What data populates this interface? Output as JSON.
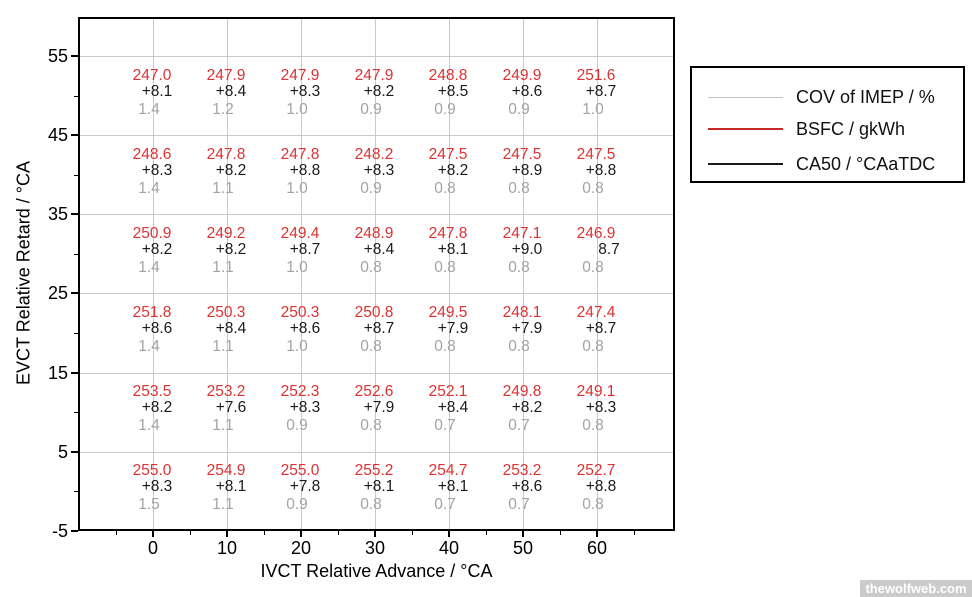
{
  "watermark": {
    "text": "thewolfweb.com"
  },
  "chart_data": {
    "type": "scatter",
    "title": "",
    "xlabel": "IVCT Relative Advance / °CA",
    "ylabel": "EVCT Relative Retard / °CA",
    "xlim": [
      -10.1,
      70.5
    ],
    "ylim": [
      -5,
      59.9
    ],
    "grid_on": true,
    "x_major_ticks": [
      0,
      10,
      20,
      30,
      40,
      50,
      60
    ],
    "x_minor_ticks": [
      -5,
      5,
      15,
      25,
      35,
      45,
      55,
      65
    ],
    "y_major_ticks": [
      55,
      45,
      35,
      25,
      15,
      5,
      -5
    ],
    "y_minor_ticks": [
      50,
      40,
      30,
      20,
      10,
      0
    ],
    "gridlines": {
      "vertical_at": [
        0,
        10,
        20,
        30,
        40,
        50,
        60
      ],
      "horizontal_at": [
        55,
        45,
        35,
        25,
        15,
        5
      ]
    },
    "colors": {
      "bsfc_text": "#dc3232",
      "ca50_text": "#1a1a1a",
      "cov_text": "#a3a3a3",
      "grid": "#c9c9c9",
      "axis": "#000000"
    },
    "legend": {
      "position": "outside-right",
      "entries": [
        {
          "label": "COV of IMEP / %",
          "color": "#c2c2c2",
          "series_key": "cov"
        },
        {
          "label": "BSFC / gkWh",
          "color": "#c62828",
          "series_key": "bsfc"
        },
        {
          "label": "CA50 / °CAaTDC",
          "color": "#1a1a1a",
          "series_key": "ca50"
        }
      ]
    },
    "ivct_values": [
      0,
      10,
      20,
      30,
      40,
      50,
      60
    ],
    "evct_values": [
      50,
      40,
      30,
      20,
      10,
      0
    ],
    "points": [
      {
        "ivct": 0,
        "evct": 50,
        "bsfc": "247.0",
        "ca50": "8.1",
        "ca50_marker": true,
        "cov": "1.4"
      },
      {
        "ivct": 10,
        "evct": 50,
        "bsfc": "247.9",
        "ca50": "8.4",
        "ca50_marker": true,
        "cov": "1.2"
      },
      {
        "ivct": 20,
        "evct": 50,
        "bsfc": "247.9",
        "ca50": "8.3",
        "ca50_marker": true,
        "cov": "1.0"
      },
      {
        "ivct": 30,
        "evct": 50,
        "bsfc": "247.9",
        "ca50": "8.2",
        "ca50_marker": true,
        "cov": "0.9"
      },
      {
        "ivct": 40,
        "evct": 50,
        "bsfc": "248.8",
        "ca50": "8.5",
        "ca50_marker": true,
        "cov": "0.9"
      },
      {
        "ivct": 50,
        "evct": 50,
        "bsfc": "249.9",
        "ca50": "8.6",
        "ca50_marker": true,
        "cov": "0.9"
      },
      {
        "ivct": 60,
        "evct": 50,
        "bsfc": "251.6",
        "ca50": "8.7",
        "ca50_marker": true,
        "cov": "1.0"
      },
      {
        "ivct": 0,
        "evct": 40,
        "bsfc": "248.6",
        "ca50": "8.3",
        "ca50_marker": true,
        "cov": "1.4"
      },
      {
        "ivct": 10,
        "evct": 40,
        "bsfc": "247.8",
        "ca50": "8.2",
        "ca50_marker": true,
        "cov": "1.1"
      },
      {
        "ivct": 20,
        "evct": 40,
        "bsfc": "247.8",
        "ca50": "8.8",
        "ca50_marker": true,
        "cov": "1.0"
      },
      {
        "ivct": 30,
        "evct": 40,
        "bsfc": "248.2",
        "ca50": "8.3",
        "ca50_marker": true,
        "cov": "0.9"
      },
      {
        "ivct": 40,
        "evct": 40,
        "bsfc": "247.5",
        "ca50": "8.2",
        "ca50_marker": true,
        "cov": "0.8"
      },
      {
        "ivct": 50,
        "evct": 40,
        "bsfc": "247.5",
        "ca50": "8.9",
        "ca50_marker": true,
        "cov": "0.8"
      },
      {
        "ivct": 60,
        "evct": 40,
        "bsfc": "247.5",
        "ca50": "8.8",
        "ca50_marker": true,
        "cov": "0.8"
      },
      {
        "ivct": 0,
        "evct": 30,
        "bsfc": "250.9",
        "ca50": "8.2",
        "ca50_marker": true,
        "cov": "1.4"
      },
      {
        "ivct": 10,
        "evct": 30,
        "bsfc": "249.2",
        "ca50": "8.2",
        "ca50_marker": true,
        "cov": "1.1"
      },
      {
        "ivct": 20,
        "evct": 30,
        "bsfc": "249.4",
        "ca50": "8.7",
        "ca50_marker": true,
        "cov": "1.0"
      },
      {
        "ivct": 30,
        "evct": 30,
        "bsfc": "248.9",
        "ca50": "8.4",
        "ca50_marker": true,
        "cov": "0.8"
      },
      {
        "ivct": 40,
        "evct": 30,
        "bsfc": "247.8",
        "ca50": "8.1",
        "ca50_marker": true,
        "cov": "0.8"
      },
      {
        "ivct": 50,
        "evct": 30,
        "bsfc": "247.1",
        "ca50": "9.0",
        "ca50_marker": true,
        "cov": "0.8"
      },
      {
        "ivct": 60,
        "evct": 30,
        "bsfc": "246.9",
        "ca50": "8.7",
        "ca50_marker": false,
        "cov": "0.8"
      },
      {
        "ivct": 0,
        "evct": 20,
        "bsfc": "251.8",
        "ca50": "8.6",
        "ca50_marker": true,
        "cov": "1.4"
      },
      {
        "ivct": 10,
        "evct": 20,
        "bsfc": "250.3",
        "ca50": "8.4",
        "ca50_marker": true,
        "cov": "1.1"
      },
      {
        "ivct": 20,
        "evct": 20,
        "bsfc": "250.3",
        "ca50": "8.6",
        "ca50_marker": true,
        "cov": "1.0"
      },
      {
        "ivct": 30,
        "evct": 20,
        "bsfc": "250.8",
        "ca50": "8.7",
        "ca50_marker": true,
        "cov": "0.8"
      },
      {
        "ivct": 40,
        "evct": 20,
        "bsfc": "249.5",
        "ca50": "7.9",
        "ca50_marker": true,
        "cov": "0.8"
      },
      {
        "ivct": 50,
        "evct": 20,
        "bsfc": "248.1",
        "ca50": "7.9",
        "ca50_marker": true,
        "cov": "0.8"
      },
      {
        "ivct": 60,
        "evct": 20,
        "bsfc": "247.4",
        "ca50": "8.7",
        "ca50_marker": true,
        "cov": "0.8"
      },
      {
        "ivct": 0,
        "evct": 10,
        "bsfc": "253.5",
        "ca50": "8.2",
        "ca50_marker": true,
        "cov": "1.4"
      },
      {
        "ivct": 10,
        "evct": 10,
        "bsfc": "253.2",
        "ca50": "7.6",
        "ca50_marker": true,
        "cov": "1.1"
      },
      {
        "ivct": 20,
        "evct": 10,
        "bsfc": "252.3",
        "ca50": "8.3",
        "ca50_marker": true,
        "cov": "0.9"
      },
      {
        "ivct": 30,
        "evct": 10,
        "bsfc": "252.6",
        "ca50": "7.9",
        "ca50_marker": true,
        "cov": "0.8"
      },
      {
        "ivct": 40,
        "evct": 10,
        "bsfc": "252.1",
        "ca50": "8.4",
        "ca50_marker": true,
        "cov": "0.7"
      },
      {
        "ivct": 50,
        "evct": 10,
        "bsfc": "249.8",
        "ca50": "8.2",
        "ca50_marker": true,
        "cov": "0.7"
      },
      {
        "ivct": 60,
        "evct": 10,
        "bsfc": "249.1",
        "ca50": "8.3",
        "ca50_marker": true,
        "cov": "0.8"
      },
      {
        "ivct": 0,
        "evct": 0,
        "bsfc": "255.0",
        "ca50": "8.3",
        "ca50_marker": true,
        "cov": "1.5"
      },
      {
        "ivct": 10,
        "evct": 0,
        "bsfc": "254.9",
        "ca50": "8.1",
        "ca50_marker": true,
        "cov": "1.1"
      },
      {
        "ivct": 20,
        "evct": 0,
        "bsfc": "255.0",
        "ca50": "7.8",
        "ca50_marker": true,
        "cov": "0.9"
      },
      {
        "ivct": 30,
        "evct": 0,
        "bsfc": "255.2",
        "ca50": "8.1",
        "ca50_marker": true,
        "cov": "0.8"
      },
      {
        "ivct": 40,
        "evct": 0,
        "bsfc": "254.7",
        "ca50": "8.1",
        "ca50_marker": true,
        "cov": "0.7"
      },
      {
        "ivct": 50,
        "evct": 0,
        "bsfc": "253.2",
        "ca50": "8.6",
        "ca50_marker": true,
        "cov": "0.7"
      },
      {
        "ivct": 60,
        "evct": 0,
        "bsfc": "252.7",
        "ca50": "8.8",
        "ca50_marker": true,
        "cov": "0.8"
      }
    ]
  }
}
